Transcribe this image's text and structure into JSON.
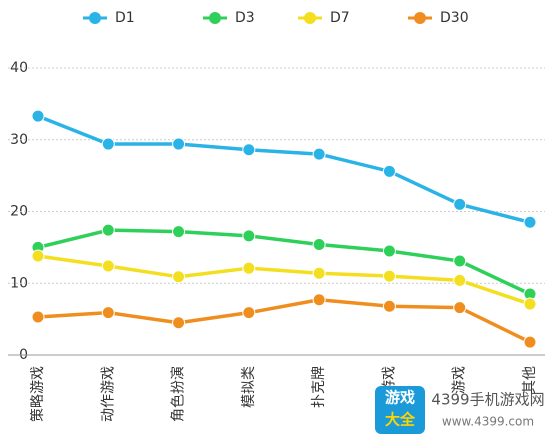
{
  "chart_data": {
    "type": "line",
    "categories": [
      "策略游戏",
      "动作游戏",
      "角色扮演",
      "模拟类",
      "扑克牌",
      "游戏",
      "游戏",
      "其他"
    ],
    "series": [
      {
        "name": "D1",
        "color": "#2ab3e6",
        "values": [
          33.3,
          29.4,
          29.4,
          28.6,
          28.0,
          25.6,
          21.0,
          18.5
        ]
      },
      {
        "name": "D3",
        "color": "#2fd05a",
        "values": [
          15.0,
          17.4,
          17.2,
          16.6,
          15.4,
          14.5,
          13.1,
          8.5
        ]
      },
      {
        "name": "D7",
        "color": "#f3df1f",
        "values": [
          13.8,
          12.4,
          10.9,
          12.1,
          11.4,
          11.0,
          10.4,
          7.1
        ]
      },
      {
        "name": "D30",
        "color": "#ef8e1f",
        "values": [
          5.3,
          5.9,
          4.5,
          5.9,
          7.7,
          6.8,
          6.6,
          1.8
        ]
      }
    ],
    "ylim": [
      0,
      40
    ],
    "yticks": [
      0,
      10,
      20,
      30,
      40
    ],
    "grid": true,
    "legend": "top",
    "watermark": {
      "logo_line1": "游戏",
      "logo_line2": "大全",
      "site": "4399手机游戏网",
      "url": "www.4399.com"
    }
  }
}
